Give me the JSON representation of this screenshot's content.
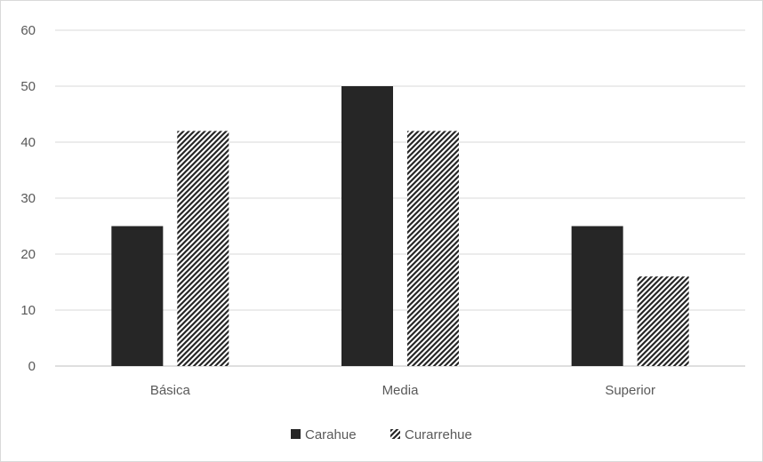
{
  "chart_data": {
    "type": "bar",
    "categories": [
      "Básica",
      "Media",
      "Superior"
    ],
    "series": [
      {
        "name": "Carahue",
        "values": [
          25,
          50,
          25
        ],
        "style": "solid",
        "color": "#262626"
      },
      {
        "name": "Curarrehue",
        "values": [
          42,
          42,
          16
        ],
        "style": "hatched",
        "color": "#262626"
      }
    ],
    "ylim": [
      0,
      60
    ],
    "yticks": [
      "0",
      "10",
      "20",
      "30",
      "40",
      "50",
      "60"
    ],
    "grid": true,
    "legend": "bottom-center",
    "title": "",
    "xlabel": "",
    "ylabel": ""
  }
}
